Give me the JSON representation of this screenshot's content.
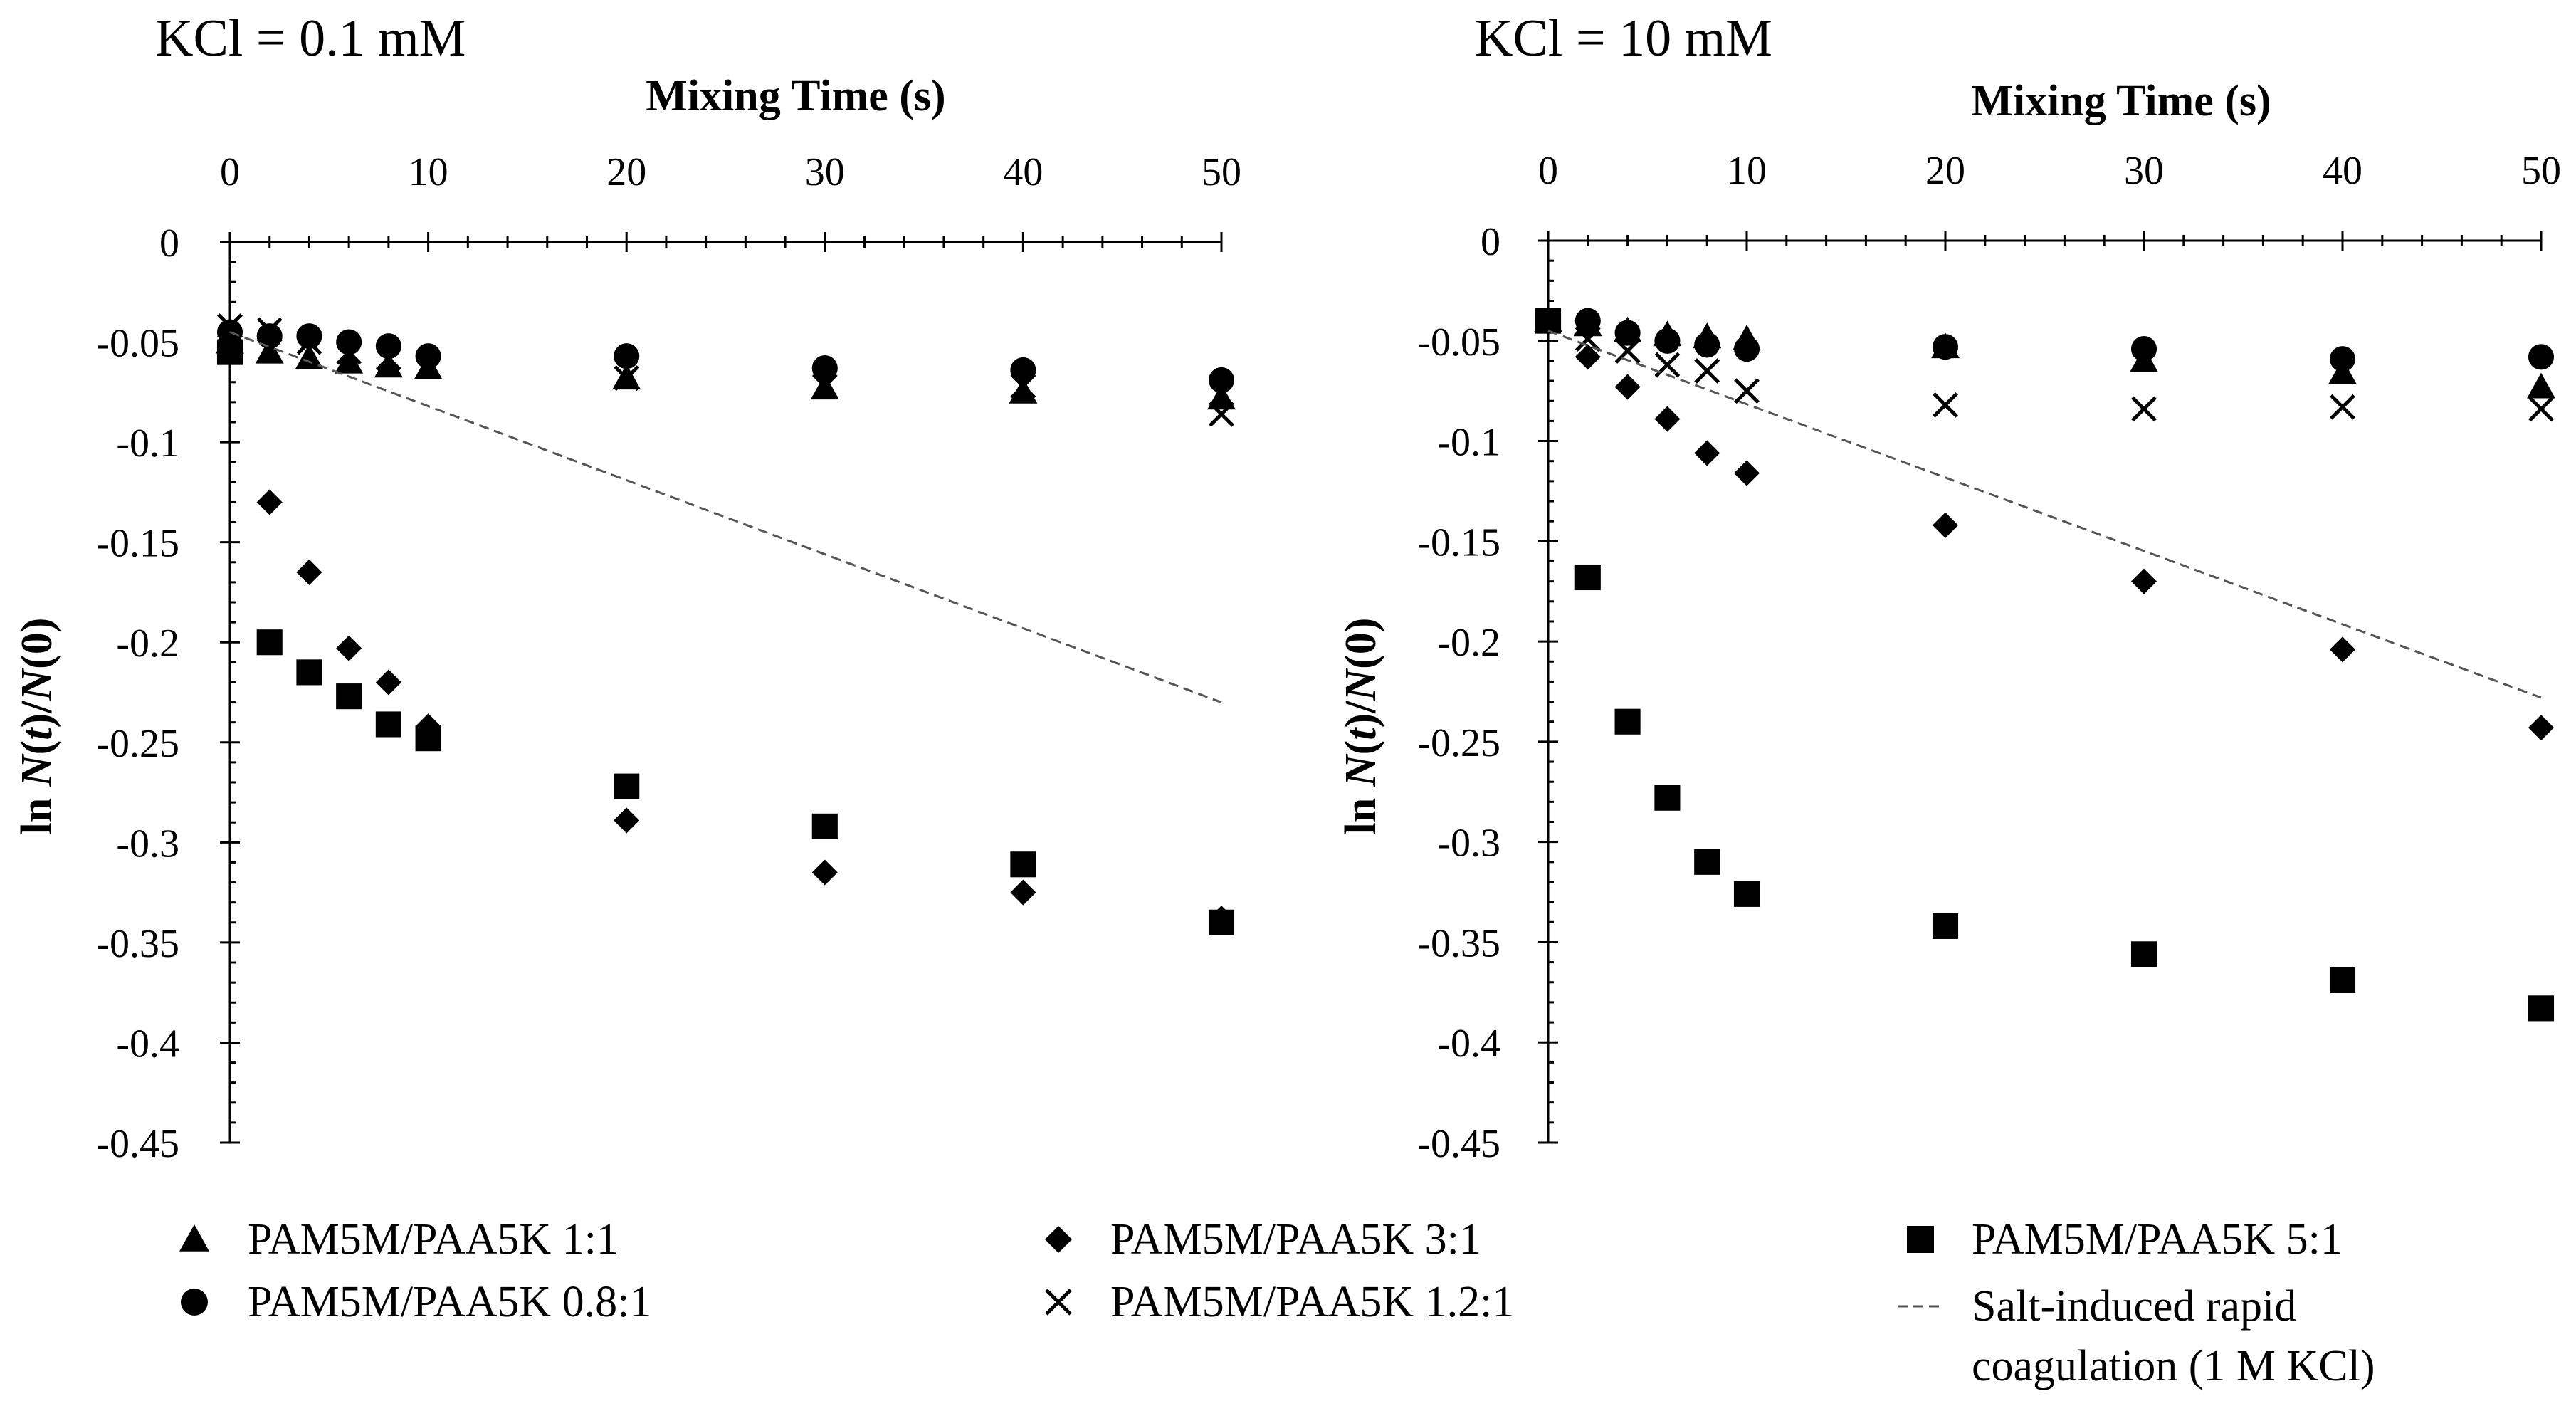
{
  "chart_data": [
    {
      "type": "scatter",
      "title": "KCl = 0.1 mM",
      "xlabel": "Mixing Time (s)",
      "ylabel_prefix": "ln ",
      "ylabel_N": "N",
      "ylabel_t": "t",
      "ylabel_rest": ")/",
      "ylabel_N0": "N",
      "ylabel_end": "(0)",
      "ylabel_open": "(",
      "xlim": [
        0,
        50
      ],
      "ylim": [
        -0.45,
        0
      ],
      "x_ticks": [
        0,
        10,
        20,
        30,
        40,
        50
      ],
      "y_ticks": [
        0,
        -0.05,
        -0.1,
        -0.15,
        -0.2,
        -0.25,
        -0.3,
        -0.35,
        -0.4,
        -0.45
      ],
      "x_tick_labels": [
        "0",
        "10",
        "20",
        "30",
        "40",
        "50"
      ],
      "y_tick_labels": [
        "0",
        "-0.05",
        "-0.1",
        "-0.15",
        "-0.2",
        "-0.25",
        "-0.3",
        "-0.35",
        "-0.4",
        "-0.45"
      ],
      "series": [
        {
          "name": "PAM5M/PAA5K 1:1",
          "marker": "triangle",
          "x": [
            0,
            2,
            4,
            6,
            8,
            10,
            20,
            30,
            40,
            50
          ],
          "y": [
            -0.05,
            -0.055,
            -0.058,
            -0.06,
            -0.062,
            -0.063,
            -0.068,
            -0.073,
            -0.075,
            -0.078
          ]
        },
        {
          "name": "PAM5M/PAA5K 0.8:1",
          "marker": "circle",
          "x": [
            0,
            2,
            4,
            6,
            8,
            10,
            20,
            30,
            40,
            50
          ],
          "y": [
            -0.045,
            -0.047,
            -0.047,
            -0.05,
            -0.052,
            -0.057,
            -0.057,
            -0.063,
            -0.064,
            -0.069
          ]
        },
        {
          "name": "PAM5M/PAA5K 3:1",
          "marker": "diamond",
          "x": [
            0,
            2,
            4,
            6,
            8,
            10,
            20,
            30,
            40,
            50
          ],
          "y": [
            -0.045,
            -0.13,
            -0.165,
            -0.203,
            -0.22,
            -0.242,
            -0.289,
            -0.315,
            -0.325,
            -0.338
          ]
        },
        {
          "name": "PAM5M/PAA5K 1.2:1",
          "marker": "x",
          "x": [
            0,
            2,
            4,
            6,
            8,
            10,
            20,
            30,
            40,
            50
          ],
          "y": [
            -0.042,
            -0.044,
            -0.05,
            -0.055,
            -0.058,
            -0.062,
            -0.068,
            -0.072,
            -0.072,
            -0.086
          ]
        },
        {
          "name": "PAM5M/PAA5K 5:1",
          "marker": "square",
          "x": [
            0,
            2,
            4,
            6,
            8,
            10,
            20,
            30,
            40,
            50
          ],
          "y": [
            -0.055,
            -0.2,
            -0.215,
            -0.227,
            -0.241,
            -0.248,
            -0.272,
            -0.292,
            -0.311,
            -0.34
          ]
        },
        {
          "name": "Salt-induced rapid coagulation (1 M KCl)",
          "marker": "dashed-line",
          "x": [
            0,
            50
          ],
          "y": [
            -0.045,
            -0.23
          ]
        }
      ]
    },
    {
      "type": "scatter",
      "title": "KCl = 10 mM",
      "xlabel": "Mixing Time (s)",
      "ylabel_prefix": "ln ",
      "ylabel_N": "N",
      "ylabel_t": "t",
      "ylabel_rest": ")/",
      "ylabel_N0": "N",
      "ylabel_end": "(0)",
      "ylabel_open": "(",
      "xlim": [
        0,
        50
      ],
      "ylim": [
        -0.45,
        0
      ],
      "x_ticks": [
        0,
        10,
        20,
        30,
        40,
        50
      ],
      "y_ticks": [
        0,
        -0.05,
        -0.1,
        -0.15,
        -0.2,
        -0.25,
        -0.3,
        -0.35,
        -0.4,
        -0.45
      ],
      "x_tick_labels": [
        "0",
        "10",
        "20",
        "30",
        "40",
        "50"
      ],
      "y_tick_labels": [
        "0",
        "-0.05",
        "-0.1",
        "-0.15",
        "-0.2",
        "-0.25",
        "-0.3",
        "-0.35",
        "-0.4",
        "-0.45"
      ],
      "series": [
        {
          "name": "PAM5M/PAA5K 1:1",
          "marker": "triangle",
          "x": [
            0,
            2,
            4,
            6,
            8,
            10,
            20,
            30,
            40,
            50
          ],
          "y": [
            -0.04,
            -0.042,
            -0.045,
            -0.047,
            -0.048,
            -0.049,
            -0.053,
            -0.06,
            -0.066,
            -0.073
          ]
        },
        {
          "name": "PAM5M/PAA5K 0.8:1",
          "marker": "circle",
          "x": [
            0,
            2,
            4,
            6,
            8,
            10,
            20,
            30,
            40,
            50
          ],
          "y": [
            -0.04,
            -0.04,
            -0.046,
            -0.05,
            -0.052,
            -0.054,
            -0.053,
            -0.054,
            -0.059,
            -0.058
          ]
        },
        {
          "name": "PAM5M/PAA5K 3:1",
          "marker": "diamond",
          "x": [
            0,
            2,
            4,
            6,
            8,
            10,
            20,
            30,
            40,
            50
          ],
          "y": [
            -0.04,
            -0.058,
            -0.073,
            -0.089,
            -0.106,
            -0.116,
            -0.142,
            -0.17,
            -0.204,
            -0.243
          ]
        },
        {
          "name": "PAM5M/PAA5K 1.2:1",
          "marker": "x",
          "x": [
            0,
            2,
            4,
            6,
            8,
            10,
            20,
            30,
            40,
            50
          ],
          "y": [
            -0.04,
            -0.049,
            -0.055,
            -0.062,
            -0.065,
            -0.075,
            -0.082,
            -0.084,
            -0.083,
            -0.084
          ]
        },
        {
          "name": "PAM5M/PAA5K 5:1",
          "marker": "square",
          "x": [
            0,
            2,
            4,
            6,
            8,
            10,
            20,
            30,
            40,
            50
          ],
          "y": [
            -0.04,
            -0.168,
            -0.24,
            -0.278,
            -0.31,
            -0.326,
            -0.342,
            -0.356,
            -0.369,
            -0.383
          ]
        },
        {
          "name": "Salt-induced rapid coagulation (1 M KCl)",
          "marker": "dashed-line",
          "x": [
            0,
            50
          ],
          "y": [
            -0.045,
            -0.228
          ]
        }
      ]
    }
  ],
  "legend": {
    "items": [
      {
        "label": "PAM5M/PAA5K 1:1",
        "marker": "triangle"
      },
      {
        "label": "PAM5M/PAA5K 3:1",
        "marker": "diamond"
      },
      {
        "label": "PAM5M/PAA5K 5:1",
        "marker": "square"
      },
      {
        "label": "PAM5M/PAA5K 0.8:1",
        "marker": "circle"
      },
      {
        "label": "PAM5M/PAA5K 1.2:1",
        "marker": "x"
      },
      {
        "label_line1": "Salt-induced rapid",
        "label_line2": "coagulation (1 M KCl)",
        "marker": "dashed-line"
      }
    ]
  }
}
